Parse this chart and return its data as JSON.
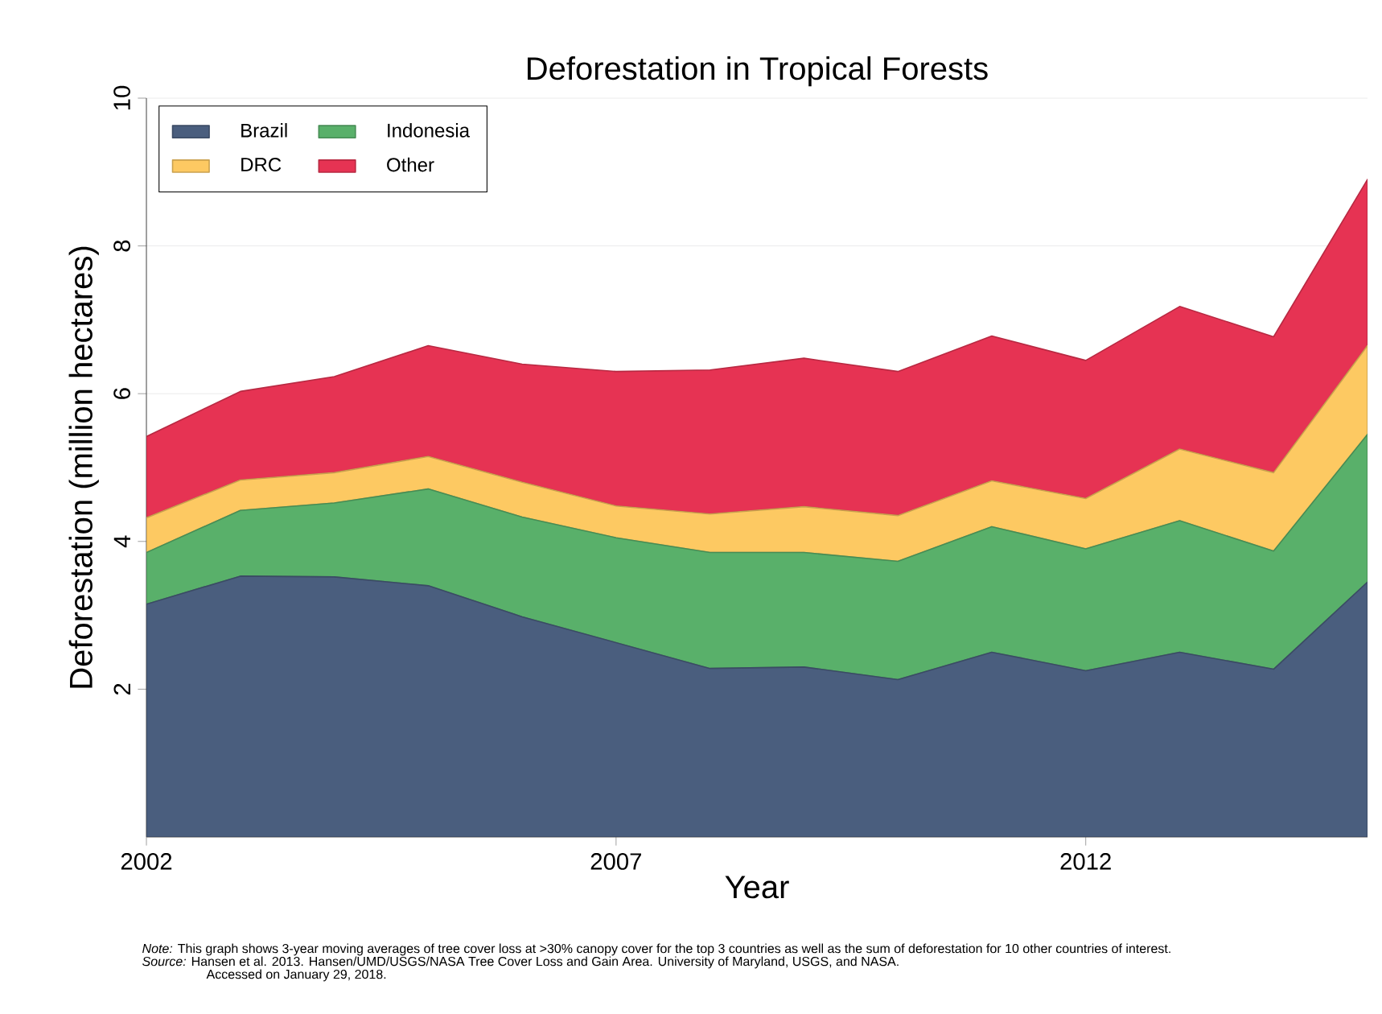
{
  "chart_data": {
    "type": "area",
    "stacked": true,
    "title": "Deforestation in Tropical Forests",
    "xlabel": "Year",
    "ylabel": "Deforestation (million hectares)",
    "x": [
      2002,
      2003,
      2004,
      2005,
      2006,
      2007,
      2008,
      2009,
      2010,
      2011,
      2012,
      2013,
      2014,
      2015
    ],
    "series": [
      {
        "name": "Brazil",
        "color": "#4a5e7e",
        "values": [
          3.15,
          3.53,
          3.52,
          3.4,
          2.98,
          2.63,
          2.28,
          2.3,
          2.13,
          2.5,
          2.25,
          2.5,
          2.27,
          3.45
        ]
      },
      {
        "name": "Indonesia",
        "color": "#59b06a",
        "values": [
          0.7,
          0.89,
          1.0,
          1.31,
          1.35,
          1.42,
          1.57,
          1.55,
          1.6,
          1.7,
          1.65,
          1.78,
          1.6,
          2.0
        ]
      },
      {
        "name": "DRC",
        "color": "#fdc962",
        "values": [
          0.47,
          0.41,
          0.41,
          0.44,
          0.47,
          0.43,
          0.52,
          0.62,
          0.62,
          0.62,
          0.68,
          0.97,
          1.06,
          1.2
        ]
      },
      {
        "name": "Other",
        "color": "#e63353",
        "values": [
          1.1,
          1.2,
          1.3,
          1.5,
          1.6,
          1.82,
          1.95,
          2.01,
          1.95,
          1.96,
          1.87,
          1.93,
          1.84,
          2.25
        ]
      }
    ],
    "xlim": [
      2002,
      2015
    ],
    "xticks": [
      2002,
      2007,
      2012
    ],
    "ylim": [
      0,
      10
    ],
    "yticks": [
      2,
      4,
      6,
      8,
      10
    ],
    "grid": "y",
    "legend": "top left",
    "annotations": [
      "*Note:* This graph shows 3-year moving averages of tree cover loss at >30% canopy cover for the top 3 countries as well as the sum of deforestation for 10 other countries of interest.",
      "*Source:* Hansen et al. 2013. Hansen/UMD/USGS/NASA Tree Cover Loss and Gain Area. University of Maryland, USGS, and NASA.",
      "Accessed on January 29, 2018."
    ]
  }
}
